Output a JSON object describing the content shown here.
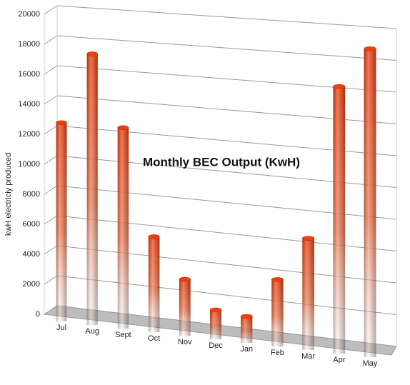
{
  "chart_data": {
    "type": "bar",
    "title": "Monthly BEC Output (KwH)",
    "y_label": "kwH electriciy produced",
    "categories": [
      "Jul",
      "Aug",
      "Sept",
      "Oct",
      "Nov",
      "Dec",
      "Jan",
      "Feb",
      "Mar",
      "Apr",
      "May"
    ],
    "values": [
      13000,
      17500,
      12800,
      6000,
      3500,
      1800,
      1600,
      4000,
      6600,
      15600,
      17800
    ],
    "color": "#f04010",
    "ylim": [
      0,
      20000
    ],
    "yticks": [
      0,
      2000,
      4000,
      6000,
      8000,
      10000,
      12000,
      14000,
      16000,
      18000,
      20000
    ],
    "grid": true
  }
}
